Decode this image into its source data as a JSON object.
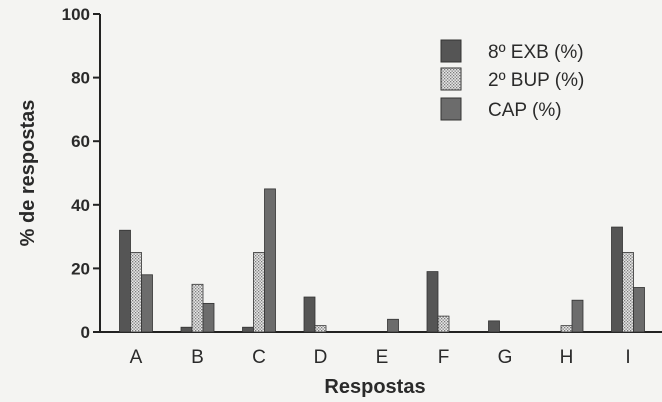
{
  "chart_data": {
    "type": "bar",
    "categories": [
      "A",
      "B",
      "C",
      "D",
      "E",
      "F",
      "G",
      "H",
      "I"
    ],
    "series": [
      {
        "name": "8º EXB (%)",
        "values": [
          32,
          1.5,
          1.5,
          11,
          0,
          19,
          3.5,
          0,
          33
        ],
        "color": "#555555",
        "pattern": "solid"
      },
      {
        "name": "2º BUP (%)",
        "values": [
          25,
          15,
          25,
          2,
          0,
          5,
          0,
          2,
          25
        ],
        "color": "#dcdcdc",
        "pattern": "dotted"
      },
      {
        "name": "CAP (%)",
        "values": [
          18,
          9,
          45,
          0,
          4,
          0,
          0,
          10,
          14
        ],
        "color": "#6c6c6c",
        "pattern": "solid"
      }
    ],
    "xlabel": "Respostas",
    "ylabel": "% de respostas",
    "yticks": [
      0,
      20,
      40,
      60,
      80,
      100
    ],
    "ylim": [
      0,
      100
    ],
    "grid": false,
    "legend_position": "top-right"
  }
}
